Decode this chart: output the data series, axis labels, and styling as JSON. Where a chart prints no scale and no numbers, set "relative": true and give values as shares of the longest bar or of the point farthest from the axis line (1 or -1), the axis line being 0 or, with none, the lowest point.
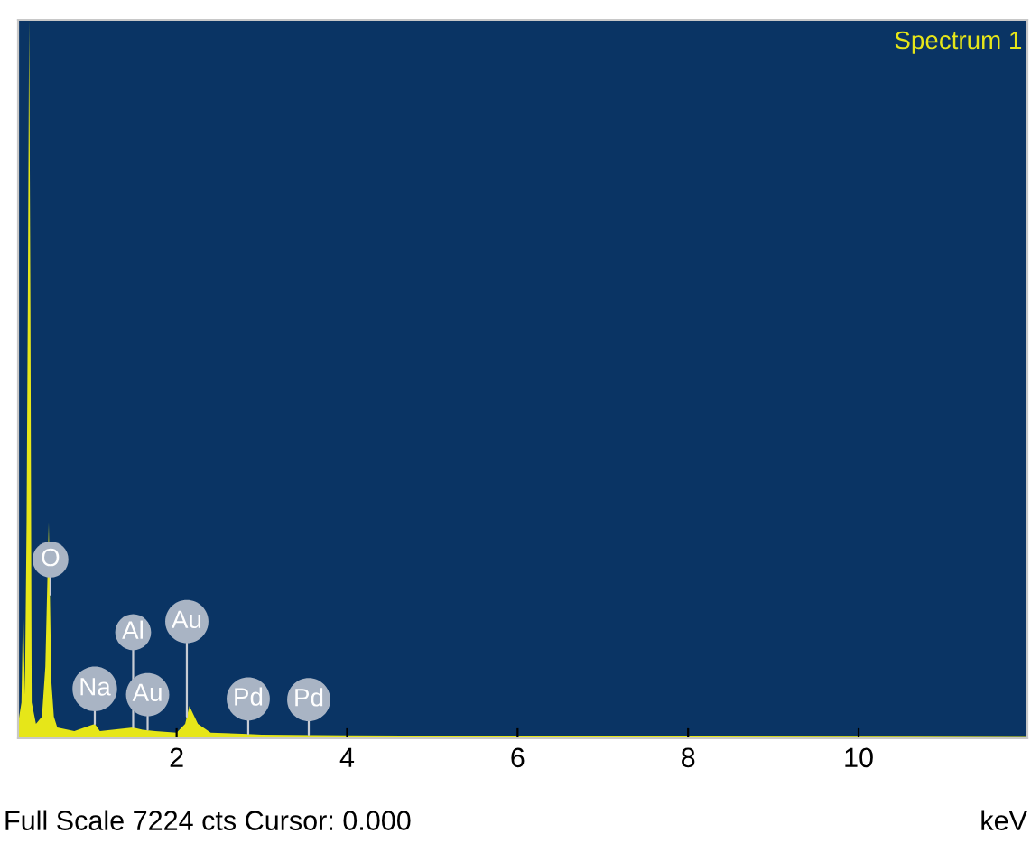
{
  "chart_data": {
    "type": "area",
    "title": "Spectrum 1",
    "xlabel": "keV",
    "relative": true,
    "x": [
      0.14,
      0.18,
      0.2,
      0.22,
      0.24,
      0.255,
      0.27,
      0.285,
      0.3,
      0.35,
      0.42,
      0.46,
      0.5,
      0.53,
      0.56,
      0.6,
      0.8,
      1.04,
      1.1,
      1.49,
      1.6,
      1.75,
      2.0,
      2.1,
      2.15,
      2.25,
      2.4,
      2.84,
      3.0,
      4.0,
      6.0,
      11.98
    ],
    "series": [
      {
        "color": "#e6e619",
        "values": [
          0.02,
          0.05,
          0.19,
          0.06,
          0.3,
          0.61,
          1,
          0.6,
          0.05,
          0.02,
          0.03,
          0.1,
          0.3,
          0.08,
          0.03,
          0.015,
          0.01,
          0.02,
          0.01,
          0.015,
          0.012,
          0.01,
          0.008,
          0.02,
          0.045,
          0.02,
          0.008,
          0.006,
          0.005,
          0.004,
          0.003,
          0.002
        ]
      }
    ],
    "xlim": [
      0.14,
      11.98
    ],
    "xticks": [
      2,
      4,
      6,
      8,
      10
    ],
    "grid": false,
    "annotations": [
      {
        "text": "O",
        "x": 0.52,
        "y": 0.2
      },
      {
        "text": "Na",
        "x": 1.04,
        "y": 0.02
      },
      {
        "text": "Al",
        "x": 1.49,
        "y": 0.015
      },
      {
        "text": "Au",
        "x": 1.66,
        "y": 0.012
      },
      {
        "text": "Au",
        "x": 2.12,
        "y": 0.03
      },
      {
        "text": "Pd",
        "x": 2.84,
        "y": 0.006
      },
      {
        "text": "Pd",
        "x": 3.55,
        "y": 0.005
      },
      "Full Scale 7224 cts Cursor: 0.000"
    ]
  }
}
